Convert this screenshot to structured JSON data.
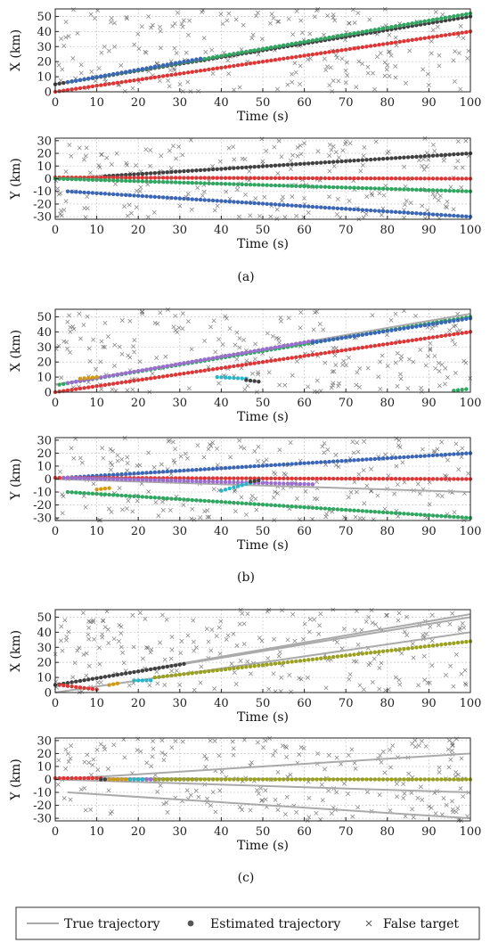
{
  "legend": {
    "true_label": "True trajectory",
    "est_label": "Estimated trajectory",
    "false_label": "False target"
  },
  "colors": {
    "true": "#aaaaaa",
    "false": "#555555",
    "black": "#404040",
    "red": "#e03535",
    "green": "#2ea860",
    "blue": "#3a66b8",
    "purple": "#9b6dd0",
    "cyan": "#29b5c9",
    "orange": "#d39a10",
    "olive": "#9aa020"
  },
  "panels": [
    {
      "label": "(a)"
    },
    {
      "label": "(b)"
    },
    {
      "label": "(c)"
    }
  ],
  "chart_data": [
    {
      "type": "scatter",
      "panel": "(a)",
      "xlabel": "Time (s)",
      "ylabel": "X (km)",
      "xlim": [
        0,
        100
      ],
      "ylim": [
        0,
        55
      ],
      "xticks": [
        0,
        10,
        20,
        30,
        40,
        50,
        60,
        70,
        80,
        90,
        100
      ],
      "yticks": [
        0,
        10,
        20,
        30,
        40,
        50
      ],
      "grid": true,
      "true_trajectories": [
        {
          "points": [
            [
              0,
              5
            ],
            [
              100,
              50
            ]
          ]
        },
        {
          "points": [
            [
              0,
              5
            ],
            [
              100,
              52
            ]
          ]
        },
        {
          "points": [
            [
              0,
              0
            ],
            [
              100,
              40
            ]
          ]
        }
      ],
      "series": [
        {
          "color": "black",
          "x": [
            0,
            100
          ],
          "y": [
            5,
            50
          ]
        },
        {
          "color": "green",
          "x": [
            3,
            100
          ],
          "y": [
            6.4,
            52
          ]
        },
        {
          "color": "blue",
          "x": [
            3,
            35
          ],
          "y": [
            6.4,
            22
          ]
        },
        {
          "color": "red",
          "x": [
            0,
            100
          ],
          "y": [
            0,
            40
          ]
        }
      ],
      "false_targets": "uniform clutter, x 0–100 s, y 0–55 km"
    },
    {
      "type": "scatter",
      "panel": "(a)",
      "xlabel": "Time (s)",
      "ylabel": "Y (km)",
      "xlim": [
        0,
        100
      ],
      "ylim": [
        -32,
        32
      ],
      "xticks": [
        0,
        10,
        20,
        30,
        40,
        50,
        60,
        70,
        80,
        90,
        100
      ],
      "yticks": [
        -30,
        -20,
        -10,
        0,
        10,
        20,
        30
      ],
      "grid": true,
      "true_trajectories": [
        {
          "points": [
            [
              0,
              0
            ],
            [
              100,
              20
            ]
          ]
        },
        {
          "points": [
            [
              0,
              1
            ],
            [
              100,
              0
            ]
          ]
        },
        {
          "points": [
            [
              0,
              0
            ],
            [
              100,
              -10
            ]
          ]
        },
        {
          "points": [
            [
              3,
              -10
            ],
            [
              100,
              -30
            ]
          ]
        }
      ],
      "series": [
        {
          "color": "black",
          "x": [
            12,
            100
          ],
          "y": [
            2,
            20
          ]
        },
        {
          "color": "red",
          "x": [
            0,
            100
          ],
          "y": [
            1,
            0
          ]
        },
        {
          "color": "green",
          "x": [
            0,
            100
          ],
          "y": [
            0,
            -10
          ]
        },
        {
          "color": "blue",
          "x": [
            3,
            100
          ],
          "y": [
            -10,
            -30
          ]
        }
      ],
      "false_targets": "uniform clutter, x 0–100 s, y -32–32 km"
    },
    {
      "type": "scatter",
      "panel": "(b)",
      "xlabel": "Time (s)",
      "ylabel": "X (km)",
      "xlim": [
        0,
        100
      ],
      "ylim": [
        0,
        55
      ],
      "xticks": [
        0,
        10,
        20,
        30,
        40,
        50,
        60,
        70,
        80,
        90,
        100
      ],
      "yticks": [
        0,
        10,
        20,
        30,
        40,
        50
      ],
      "grid": true,
      "true_trajectories": [
        {
          "points": [
            [
              0,
              5
            ],
            [
              100,
              50
            ]
          ]
        },
        {
          "points": [
            [
              0,
              5
            ],
            [
              100,
              52
            ]
          ]
        },
        {
          "points": [
            [
              0,
              0
            ],
            [
              100,
              40
            ]
          ]
        }
      ],
      "series": [
        {
          "color": "green",
          "x": [
            1,
            100
          ],
          "y": [
            5,
            50
          ]
        },
        {
          "color": "purple",
          "x": [
            3,
            62
          ],
          "y": [
            6,
            34
          ]
        },
        {
          "color": "blue",
          "x": [
            62,
            100
          ],
          "y": [
            33,
            49
          ]
        },
        {
          "color": "red",
          "x": [
            0,
            100
          ],
          "y": [
            0,
            40
          ]
        },
        {
          "color": "orange",
          "x": [
            6,
            10
          ],
          "y": [
            9,
            10
          ]
        },
        {
          "color": "cyan",
          "x": [
            39,
            46
          ],
          "y": [
            10,
            9
          ]
        },
        {
          "color": "black",
          "x": [
            46,
            49
          ],
          "y": [
            8,
            7
          ]
        },
        {
          "color": "green",
          "x": [
            96,
            99
          ],
          "y": [
            1,
            2
          ]
        }
      ],
      "false_targets": "uniform clutter, x 0–100 s, y 0–55 km"
    },
    {
      "type": "scatter",
      "panel": "(b)",
      "xlabel": "Time (s)",
      "ylabel": "Y (km)",
      "xlim": [
        0,
        100
      ],
      "ylim": [
        -32,
        32
      ],
      "xticks": [
        0,
        10,
        20,
        30,
        40,
        50,
        60,
        70,
        80,
        90,
        100
      ],
      "yticks": [
        -30,
        -20,
        -10,
        0,
        10,
        20,
        30
      ],
      "grid": true,
      "true_trajectories": [
        {
          "points": [
            [
              0,
              0
            ],
            [
              100,
              20
            ]
          ]
        },
        {
          "points": [
            [
              0,
              1
            ],
            [
              100,
              0
            ]
          ]
        },
        {
          "points": [
            [
              0,
              0
            ],
            [
              100,
              -10
            ]
          ]
        },
        {
          "points": [
            [
              3,
              -10
            ],
            [
              100,
              -30
            ]
          ]
        }
      ],
      "series": [
        {
          "color": "blue",
          "x": [
            2,
            100
          ],
          "y": [
            1,
            20
          ]
        },
        {
          "color": "red",
          "x": [
            0,
            100
          ],
          "y": [
            1,
            0
          ]
        },
        {
          "color": "purple",
          "x": [
            2,
            62
          ],
          "y": [
            1,
            -4
          ]
        },
        {
          "color": "green",
          "x": [
            3,
            100
          ],
          "y": [
            -10,
            -30
          ]
        },
        {
          "color": "orange",
          "x": [
            10,
            13
          ],
          "y": [
            -8,
            -7
          ]
        },
        {
          "color": "cyan",
          "x": [
            40,
            47
          ],
          "y": [
            -9,
            -3
          ]
        },
        {
          "color": "black",
          "x": [
            47,
            49
          ],
          "y": [
            -2,
            -1
          ]
        }
      ],
      "false_targets": "uniform clutter, x 0–100 s, y -32–32 km"
    },
    {
      "type": "scatter",
      "panel": "(c)",
      "xlabel": "Time (s)",
      "ylabel": "X (km)",
      "xlim": [
        0,
        100
      ],
      "ylim": [
        0,
        55
      ],
      "xticks": [
        0,
        10,
        20,
        30,
        40,
        50,
        60,
        70,
        80,
        90,
        100
      ],
      "yticks": [
        0,
        10,
        20,
        30,
        40,
        50
      ],
      "grid": true,
      "true_trajectories": [
        {
          "points": [
            [
              0,
              5
            ],
            [
              100,
              50
            ]
          ]
        },
        {
          "points": [
            [
              0,
              5
            ],
            [
              100,
              52
            ]
          ]
        },
        {
          "points": [
            [
              0,
              0
            ],
            [
              100,
              40
            ]
          ]
        }
      ],
      "series": [
        {
          "color": "black",
          "x": [
            0,
            31
          ],
          "y": [
            5,
            19
          ]
        },
        {
          "color": "red",
          "x": [
            1,
            10
          ],
          "y": [
            5,
            2
          ]
        },
        {
          "color": "orange",
          "x": [
            13,
            15
          ],
          "y": [
            5,
            6
          ]
        },
        {
          "color": "cyan",
          "x": [
            19,
            23
          ],
          "y": [
            8,
            8
          ]
        },
        {
          "color": "olive",
          "x": [
            24,
            100
          ],
          "y": [
            10,
            34
          ]
        }
      ],
      "false_targets": "uniform clutter, x 0–100 s, y 0–55 km"
    },
    {
      "type": "scatter",
      "panel": "(c)",
      "xlabel": "Time (s)",
      "ylabel": "Y (km)",
      "xlim": [
        0,
        100
      ],
      "ylim": [
        -32,
        32
      ],
      "xticks": [
        0,
        10,
        20,
        30,
        40,
        50,
        60,
        70,
        80,
        90,
        100
      ],
      "yticks": [
        -30,
        -20,
        -10,
        0,
        10,
        20,
        30
      ],
      "grid": true,
      "true_trajectories": [
        {
          "points": [
            [
              0,
              0
            ],
            [
              100,
              20
            ]
          ]
        },
        {
          "points": [
            [
              0,
              1
            ],
            [
              100,
              0
            ]
          ]
        },
        {
          "points": [
            [
              0,
              0
            ],
            [
              100,
              -10
            ]
          ]
        },
        {
          "points": [
            [
              3,
              -10
            ],
            [
              100,
              -30
            ]
          ]
        }
      ],
      "series": [
        {
          "color": "red",
          "x": [
            0,
            11
          ],
          "y": [
            1,
            1
          ]
        },
        {
          "color": "black",
          "x": [
            11,
            34
          ],
          "y": [
            0,
            0
          ]
        },
        {
          "color": "orange",
          "x": [
            13,
            17
          ],
          "y": [
            0,
            0
          ]
        },
        {
          "color": "cyan",
          "x": [
            18,
            22
          ],
          "y": [
            0,
            0
          ]
        },
        {
          "color": "purple",
          "x": [
            22,
            24
          ],
          "y": [
            0,
            0
          ]
        },
        {
          "color": "olive",
          "x": [
            24,
            100
          ],
          "y": [
            0,
            0
          ]
        }
      ],
      "false_targets": "uniform clutter, x 0–100 s, y -32–32 km"
    }
  ]
}
